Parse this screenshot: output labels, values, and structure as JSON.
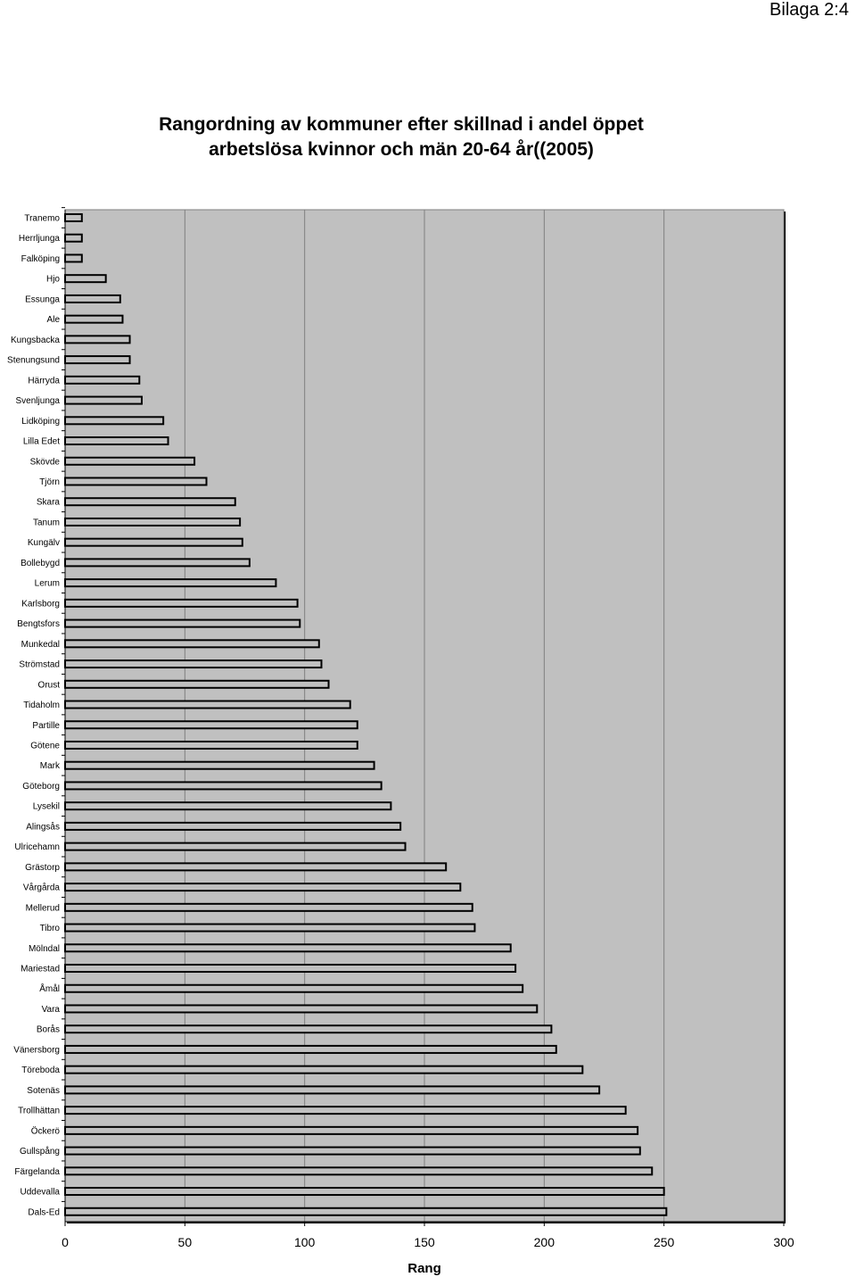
{
  "page_label": "Bilaga 2:4",
  "chart_data": {
    "type": "bar",
    "orientation": "horizontal",
    "title_lines": [
      "Rangordning av kommuner efter skillnad i andel öppet",
      "arbetslösa kvinnor och män 20-64 år((2005)"
    ],
    "xlabel": "Rang",
    "ylabel": "",
    "xlim": [
      0,
      300
    ],
    "xticks": [
      0,
      50,
      100,
      150,
      200,
      250,
      300
    ],
    "grid": true,
    "legend": "none",
    "colors": {
      "plot_bg": "#c0c0c0",
      "bar_fill": "#c0c0c0",
      "bar_stroke": "#000000",
      "gridline": "#7f7f7f"
    },
    "categories": [
      "Tranemo",
      "Herrljunga",
      "Falköping",
      "Hjo",
      "Essunga",
      "Ale",
      "Kungsbacka",
      "Stenungsund",
      "Härryda",
      "Svenljunga",
      "Lidköping",
      "Lilla Edet",
      "Skövde",
      "Tjörn",
      "Skara",
      "Tanum",
      "Kungälv",
      "Bollebygd",
      "Lerum",
      "Karlsborg",
      "Bengtsfors",
      "Munkedal",
      "Strömstad",
      "Orust",
      "Tidaholm",
      "Partille",
      "Götene",
      "Mark",
      "Göteborg",
      "Lysekil",
      "Alingsås",
      "Ulricehamn",
      "Grästorp",
      "Vårgårda",
      "Mellerud",
      "Tibro",
      "Mölndal",
      "Mariestad",
      "Åmål",
      "Vara",
      "Borås",
      "Vänersborg",
      "Töreboda",
      "Sotenäs",
      "Trollhättan",
      "Öckerö",
      "Gullspång",
      "Färgelanda",
      "Uddevalla",
      "Dals-Ed"
    ],
    "values": [
      7,
      7,
      7,
      17,
      23,
      24,
      27,
      27,
      31,
      32,
      41,
      43,
      54,
      59,
      71,
      73,
      74,
      77,
      88,
      97,
      98,
      106,
      107,
      110,
      119,
      122,
      122,
      129,
      132,
      136,
      140,
      142,
      159,
      165,
      170,
      171,
      186,
      188,
      191,
      197,
      203,
      205,
      216,
      223,
      234,
      239,
      240,
      245,
      250,
      251
    ]
  }
}
